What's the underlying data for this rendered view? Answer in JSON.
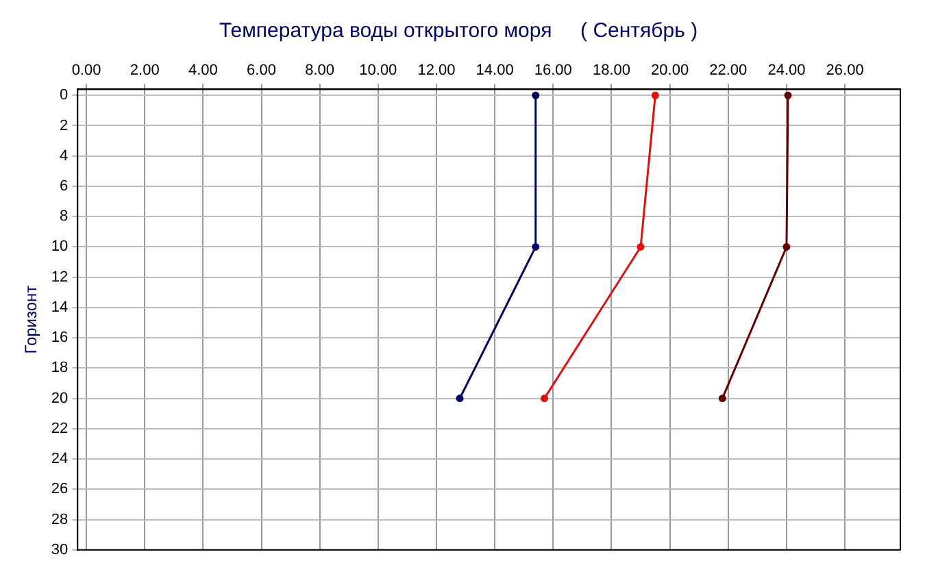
{
  "chart_data": {
    "type": "line",
    "title": "Температура воды открытого моря     ( Сентябрь )",
    "ylabel": "Горизонт",
    "xlim": [
      -0.3,
      27.9
    ],
    "ylim": [
      30,
      -0.4
    ],
    "xticks": [
      {
        "value": 0,
        "label": "0.00"
      },
      {
        "value": 2,
        "label": "2.00"
      },
      {
        "value": 4,
        "label": "4.00"
      },
      {
        "value": 6,
        "label": "6.00"
      },
      {
        "value": 8,
        "label": "8.00"
      },
      {
        "value": 10,
        "label": "10.00"
      },
      {
        "value": 12,
        "label": "12.00"
      },
      {
        "value": 14,
        "label": "14.00"
      },
      {
        "value": 16,
        "label": "16.00"
      },
      {
        "value": 18,
        "label": "18.00"
      },
      {
        "value": 20,
        "label": "20.00"
      },
      {
        "value": 22,
        "label": "22.00"
      },
      {
        "value": 24,
        "label": "24.00"
      },
      {
        "value": 26,
        "label": "26.00"
      }
    ],
    "yticks": [
      0,
      2,
      4,
      6,
      8,
      10,
      12,
      14,
      16,
      18,
      20,
      22,
      24,
      26,
      28,
      30
    ],
    "grid": true,
    "marker": "circle",
    "legend": false,
    "series": [
      {
        "color": "#000066",
        "x": [
          15.4,
          15.4,
          12.8
        ],
        "values": [
          0,
          10,
          20
        ]
      },
      {
        "color": "#e01010",
        "x": [
          19.5,
          19.0,
          15.7
        ],
        "values": [
          0,
          10,
          20
        ]
      },
      {
        "color": "#660000",
        "x": [
          24.05,
          24.0,
          21.8
        ],
        "values": [
          0,
          10,
          20
        ]
      }
    ]
  }
}
